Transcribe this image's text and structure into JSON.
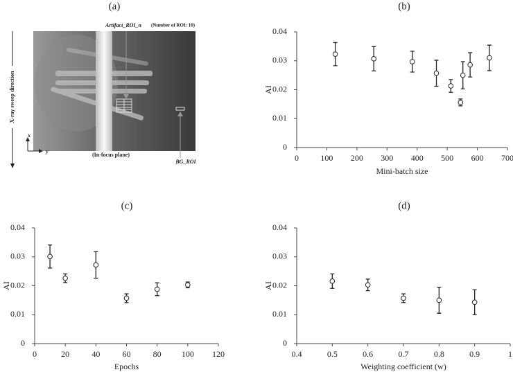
{
  "chart_data": [
    {
      "type": "image",
      "panel": "(a)",
      "annotation_roi": "Artifact_ROI_n",
      "annotation_roi_count": "(Number of ROI: 10)",
      "annotation_bg": "BG_ROI",
      "annotation_plane": "(In-focus plane)",
      "sweep_label": "X-ray sweep direction",
      "axis_x": "x",
      "axis_y": "y"
    },
    {
      "type": "scatter",
      "panel": "(b)",
      "xlabel": "Mini-batch size",
      "ylabel": "AI",
      "x": [
        128,
        256,
        384,
        464,
        512,
        544,
        552,
        576,
        640
      ],
      "values": [
        0.0323,
        0.0307,
        0.0297,
        0.0257,
        0.0213,
        0.0156,
        0.025,
        0.0286,
        0.031
      ],
      "errors": [
        0.004,
        0.0042,
        0.0036,
        0.0045,
        0.0022,
        0.0012,
        0.0047,
        0.0042,
        0.0044
      ],
      "xlim": [
        0,
        700
      ],
      "xticks": [
        0,
        100,
        200,
        300,
        400,
        500,
        600,
        700
      ],
      "ylim": [
        0,
        0.04
      ],
      "yticks": [
        0,
        0.01,
        0.02,
        0.03,
        0.04
      ]
    },
    {
      "type": "scatter",
      "panel": "(c)",
      "xlabel": "Epochs",
      "ylabel": "AI",
      "x": [
        10,
        20,
        40,
        60,
        80,
        100
      ],
      "values": [
        0.0301,
        0.0226,
        0.0272,
        0.0157,
        0.0188,
        0.0203
      ],
      "errors": [
        0.004,
        0.0015,
        0.0046,
        0.0015,
        0.0022,
        0.001
      ],
      "xlim": [
        0,
        120
      ],
      "xticks": [
        0,
        20,
        40,
        60,
        80,
        100,
        120
      ],
      "ylim": [
        0,
        0.04
      ],
      "yticks": [
        0,
        0.01,
        0.02,
        0.03,
        0.04
      ]
    },
    {
      "type": "scatter",
      "panel": "(d)",
      "xlabel": "Weighting coefficient (w)",
      "ylabel": "AI",
      "x": [
        0.5,
        0.6,
        0.7,
        0.8,
        0.9
      ],
      "values": [
        0.0216,
        0.0203,
        0.0157,
        0.015,
        0.0143
      ],
      "errors": [
        0.0025,
        0.002,
        0.0015,
        0.0045,
        0.0043
      ],
      "xlim": [
        0.4,
        1
      ],
      "xticks": [
        0.4,
        0.5,
        0.6,
        0.7,
        0.8,
        0.9,
        1
      ],
      "ylim": [
        0,
        0.04
      ],
      "yticks": [
        0,
        0.01,
        0.02,
        0.03,
        0.04
      ]
    }
  ]
}
